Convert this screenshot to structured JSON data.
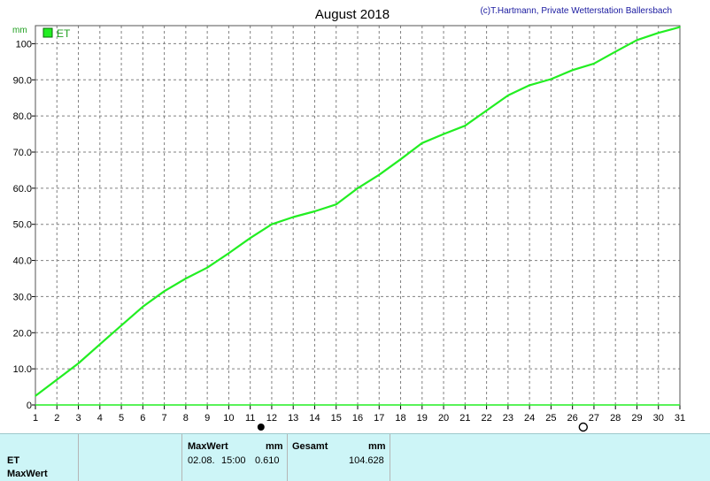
{
  "header": {
    "title": "August 2018",
    "copyright": "(c)T.Hartmann, Private Wetterstation Ballersbach",
    "unit": "mm"
  },
  "colors": {
    "series": "#22ee22",
    "grid": "#808080",
    "footer_bg": "#cdf5f7"
  },
  "chart_data": {
    "type": "line",
    "title": "August 2018",
    "ylabel": "mm",
    "xlabel": "",
    "ylim": [
      0,
      105
    ],
    "xlim": [
      1,
      31
    ],
    "y_ticks": [
      "0",
      "10.0",
      "20.0",
      "30.0",
      "40.0",
      "50.0",
      "60.0",
      "70.0",
      "80.0",
      "90.0",
      "100"
    ],
    "x_ticks": [
      "1",
      "2",
      "3",
      "4",
      "5",
      "6",
      "7",
      "8",
      "9",
      "10",
      "11",
      "12",
      "13",
      "14",
      "15",
      "16",
      "17",
      "18",
      "19",
      "20",
      "21",
      "22",
      "23",
      "24",
      "25",
      "26",
      "27",
      "28",
      "29",
      "30",
      "31"
    ],
    "grid": true,
    "legend": "top-left",
    "series": [
      {
        "name": "ET",
        "x": [
          1,
          2,
          3,
          4,
          5,
          6,
          7,
          8,
          9,
          10,
          11,
          12,
          13,
          14,
          15,
          16,
          17,
          18,
          19,
          20,
          21,
          22,
          23,
          24,
          25,
          26,
          27,
          28,
          29,
          30,
          31
        ],
        "values": [
          2.5,
          7.0,
          11.5,
          16.8,
          22.0,
          27.2,
          31.5,
          35.0,
          38.0,
          42.0,
          46.2,
          50.0,
          52.0,
          53.6,
          55.5,
          60.0,
          63.7,
          68.0,
          72.5,
          75.0,
          77.3,
          81.5,
          85.7,
          88.5,
          90.2,
          92.7,
          94.5,
          97.8,
          101.0,
          103.0,
          104.6
        ]
      }
    ]
  },
  "markers": {
    "filled_day": 11.5,
    "open_day": 26.5
  },
  "footer": {
    "row1_label": "ET",
    "row2_label": "MaxWert",
    "maxwert_header": "MaxWert",
    "maxwert_unit": "mm",
    "maxwert_date": "02.08.",
    "maxwert_time": "15:00",
    "maxwert_value": "0.610",
    "gesamt_header": "Gesamt",
    "gesamt_unit": "mm",
    "gesamt_value": "104.628"
  }
}
